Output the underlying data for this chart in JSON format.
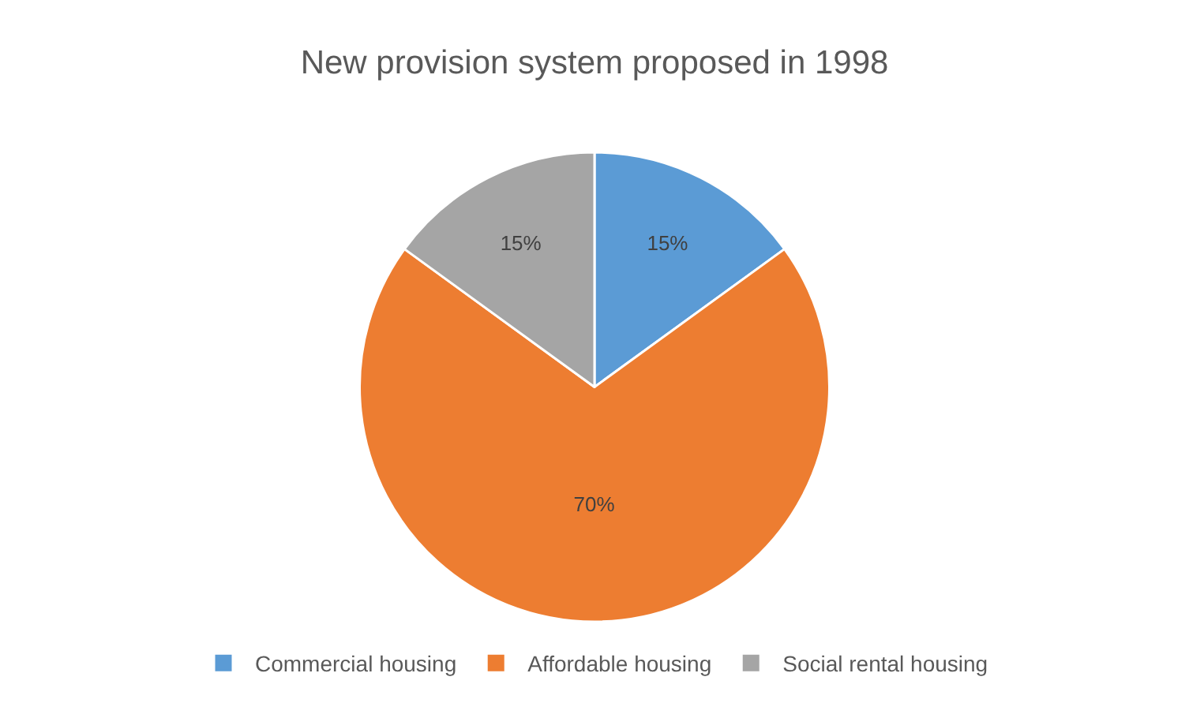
{
  "chart_data": {
    "type": "pie",
    "title": "New provision system proposed in 1998",
    "categories": [
      "Commercial housing",
      "Affordable housing",
      "Social rental housing"
    ],
    "values": [
      15,
      70,
      15
    ],
    "value_labels": [
      "15%",
      "70%",
      "15%"
    ],
    "colors": [
      "#5b9bd5",
      "#ed7d31",
      "#a5a5a5"
    ],
    "legend": "bottom"
  }
}
